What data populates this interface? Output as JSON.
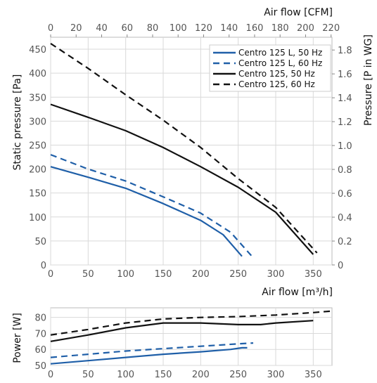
{
  "chart_data": [
    {
      "type": "line",
      "panel": "pressure",
      "xlabel": "Air flow [m³/h]",
      "ylabel": "Static pressure [Pa]",
      "top_axis_label": "Air flow [CFM]",
      "right_axis_label": "Pressure [P in WG]",
      "xlim": [
        0,
        375
      ],
      "ylim": [
        0,
        475
      ],
      "x_ticks": [
        0,
        50,
        100,
        150,
        200,
        250,
        300,
        350
      ],
      "y_ticks": [
        0,
        50,
        100,
        150,
        200,
        250,
        300,
        350,
        400,
        450
      ],
      "top_ticks": [
        0,
        20,
        40,
        60,
        80,
        100,
        120,
        140,
        160,
        180,
        200,
        220
      ],
      "right_ticks": [
        0,
        0.2,
        0.4,
        0.6,
        0.8,
        1.0,
        1.2,
        1.4,
        1.6,
        1.8
      ],
      "grid": true,
      "legend_position": "top-right",
      "series": [
        {
          "name": "Centro 125 L, 50 Hz",
          "color": "#1f5fa8",
          "dash": "solid",
          "points": [
            [
              0,
              205
            ],
            [
              50,
              183
            ],
            [
              100,
              160
            ],
            [
              150,
              128
            ],
            [
              200,
              93
            ],
            [
              230,
              63
            ],
            [
              255,
              18
            ]
          ]
        },
        {
          "name": "Centro 125 L, 60 Hz",
          "color": "#1f5fa8",
          "dash": "dashed",
          "points": [
            [
              0,
              230
            ],
            [
              50,
              200
            ],
            [
              100,
              175
            ],
            [
              150,
              142
            ],
            [
              200,
              108
            ],
            [
              240,
              68
            ],
            [
              270,
              15
            ]
          ]
        },
        {
          "name": "Centro 125, 50 Hz",
          "color": "#111111",
          "dash": "solid",
          "points": [
            [
              0,
              335
            ],
            [
              50,
              308
            ],
            [
              100,
              280
            ],
            [
              150,
              245
            ],
            [
              200,
              205
            ],
            [
              250,
              162
            ],
            [
              300,
              110
            ],
            [
              350,
              22
            ]
          ]
        },
        {
          "name": "Centro 125, 60 Hz",
          "color": "#111111",
          "dash": "dashed",
          "points": [
            [
              0,
              462
            ],
            [
              50,
              410
            ],
            [
              100,
              355
            ],
            [
              150,
              302
            ],
            [
              200,
              245
            ],
            [
              250,
              180
            ],
            [
              300,
              120
            ],
            [
              355,
              25
            ]
          ]
        }
      ]
    },
    {
      "type": "line",
      "panel": "power",
      "xlabel": "Air flow [m³/h]",
      "ylabel": "Power [W]",
      "xlim": [
        0,
        375
      ],
      "ylim": [
        50,
        86
      ],
      "x_ticks": [
        0,
        50,
        100,
        150,
        200,
        250,
        300,
        350
      ],
      "y_ticks": [
        50,
        60,
        70,
        80
      ],
      "grid": true,
      "series": [
        {
          "name": "Centro 125 L, 50 Hz",
          "color": "#1f5fa8",
          "dash": "solid",
          "points": [
            [
              0,
              51
            ],
            [
              50,
              53
            ],
            [
              100,
              55
            ],
            [
              150,
              57
            ],
            [
              200,
              58.5
            ],
            [
              240,
              60
            ],
            [
              255,
              61
            ],
            [
              262,
              61
            ]
          ]
        },
        {
          "name": "Centro 125 L, 60 Hz",
          "color": "#1f5fa8",
          "dash": "dashed",
          "points": [
            [
              0,
              55
            ],
            [
              50,
              57
            ],
            [
              100,
              59
            ],
            [
              150,
              60.5
            ],
            [
              200,
              62
            ],
            [
              250,
              63.5
            ],
            [
              270,
              64
            ]
          ]
        },
        {
          "name": "Centro 125, 50 Hz",
          "color": "#111111",
          "dash": "solid",
          "points": [
            [
              0,
              65
            ],
            [
              50,
              69
            ],
            [
              100,
              73.5
            ],
            [
              150,
              76.5
            ],
            [
              200,
              76.5
            ],
            [
              250,
              75.5
            ],
            [
              280,
              75.5
            ],
            [
              300,
              76.5
            ],
            [
              350,
              78
            ]
          ]
        },
        {
          "name": "Centro 125, 60 Hz",
          "color": "#111111",
          "dash": "dashed",
          "points": [
            [
              0,
              69
            ],
            [
              50,
              72.5
            ],
            [
              100,
              76.5
            ],
            [
              150,
              79
            ],
            [
              200,
              80
            ],
            [
              250,
              80.5
            ],
            [
              300,
              81.5
            ],
            [
              350,
              83
            ],
            [
              375,
              84
            ]
          ]
        }
      ]
    }
  ]
}
